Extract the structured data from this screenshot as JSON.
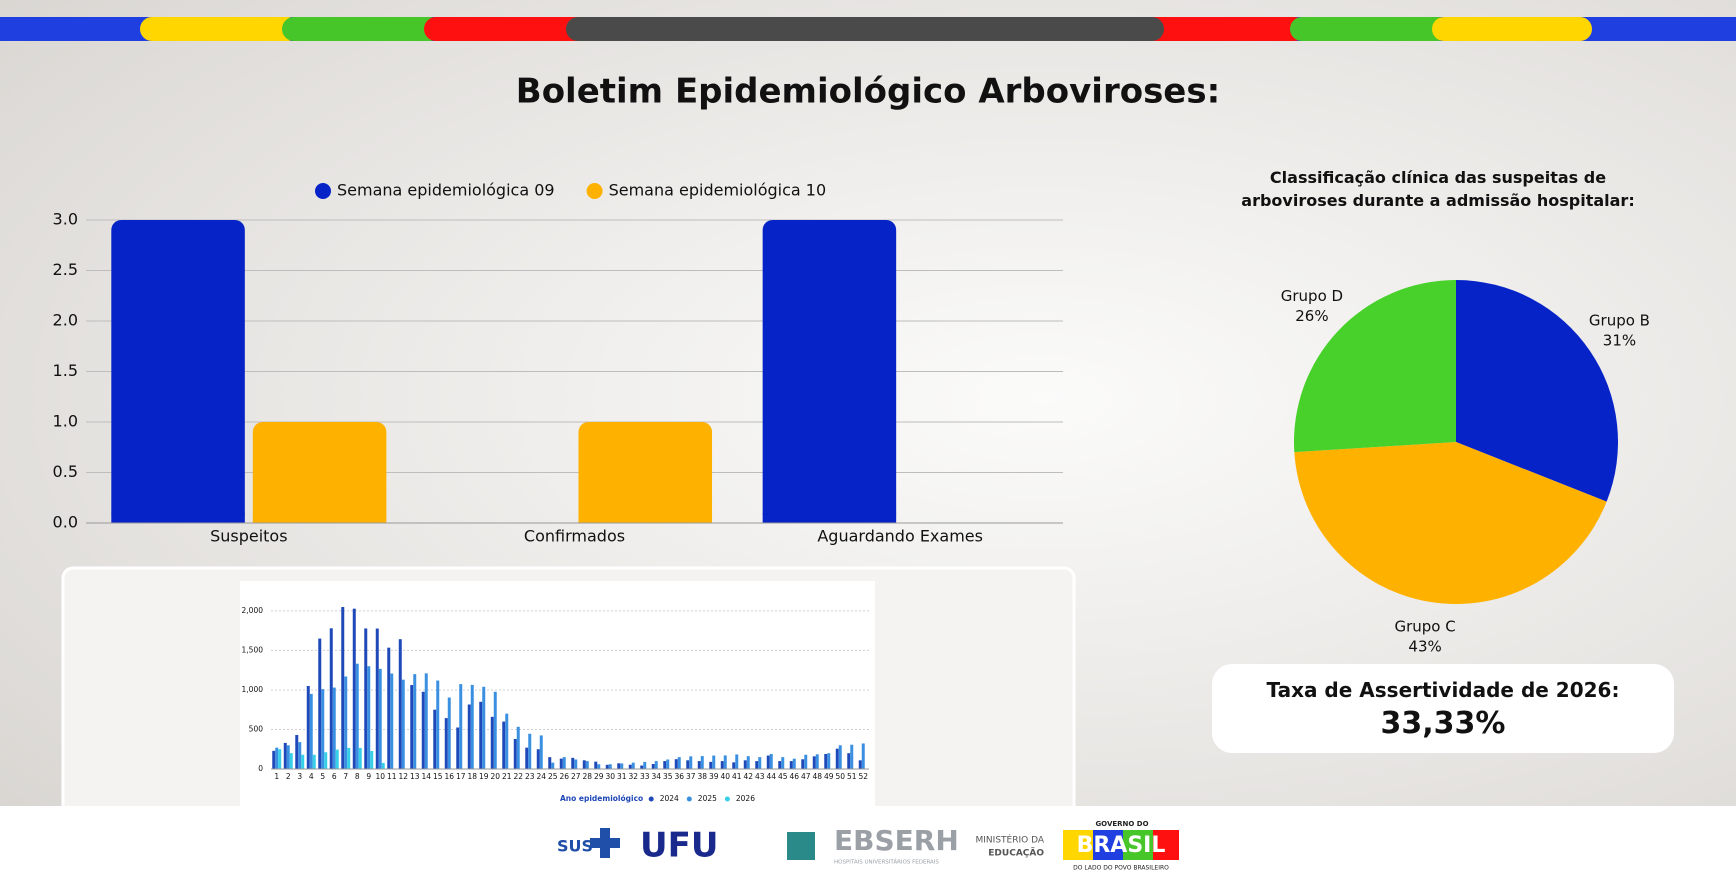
{
  "header": {
    "title": "Boletim Epidemiológico Arboviroses:"
  },
  "chart_data": [
    {
      "type": "bar",
      "categories": [
        "Suspeitos",
        "Confirmados",
        "Aguardando Exames"
      ],
      "series": [
        {
          "name": "Semana epidemiológica 09",
          "color": "#0623c8",
          "values": [
            3,
            0,
            3
          ]
        },
        {
          "name": "Semana epidemiológica 10",
          "color": "#ffb100",
          "values": [
            1,
            1,
            0
          ]
        }
      ],
      "ylim": [
        0,
        3
      ],
      "yticks": [
        {
          "value": 0,
          "label": "0.0"
        },
        0.5,
        {
          "value": 1,
          "label": "1.0"
        },
        1.5,
        {
          "value": 2,
          "label": "2.0"
        },
        2.5,
        {
          "value": 3,
          "label": "3.0"
        }
      ],
      "grid": true,
      "legend": "top"
    },
    {
      "type": "pie",
      "title": "Classificação clínica das suspeitas de arboviroses durante a admissão hospitalar:",
      "categories": [
        "Grupo B",
        "Grupo C",
        "Grupo D"
      ],
      "values": [
        31,
        43,
        26
      ],
      "value_labels": [
        "31%",
        "43%",
        "26%"
      ],
      "colors": [
        "#0623c8",
        "#ffb100",
        "#47d12a"
      ]
    },
    {
      "type": "bar",
      "categories": [
        "1",
        "2",
        "3",
        "4",
        "5",
        "6",
        "7",
        "8",
        "9",
        "10",
        "11",
        "12",
        "13",
        "14",
        "15",
        "16",
        "17",
        "18",
        "19",
        "20",
        "21",
        "22",
        "23",
        "24",
        "25",
        "26",
        "27",
        "28",
        "29",
        "30",
        "31",
        "32",
        "33",
        "34",
        "35",
        "36",
        "37",
        "38",
        "39",
        "40",
        "41",
        "42",
        "43",
        "44",
        "45",
        "46",
        "47",
        "48",
        "49",
        "50",
        "51",
        "52"
      ],
      "series": [
        {
          "name": "2024",
          "color": "#1f48b8",
          "values": [
            230,
            330,
            430,
            1050,
            1650,
            1780,
            2049,
            2028,
            1778,
            1777,
            1535,
            1642,
            1062,
            977,
            750,
            644,
            525,
            816,
            850,
            660,
            600,
            380,
            270,
            250,
            150,
            131,
            141,
            110,
            93,
            53,
            72,
            54,
            44,
            63,
            100,
            124,
            110,
            100,
            90,
            100,
            84,
            110,
            100,
            170,
            100,
            100,
            123,
            160,
            190,
            257,
            200,
            110
          ]
        },
        {
          "name": "2025",
          "color": "#3a8fe0",
          "values": [
            270,
            300,
            340,
            950,
            1010,
            1030,
            1170,
            1332,
            1300,
            1267,
            1208,
            1130,
            1200,
            1210,
            1119,
            904,
            1074,
            1064,
            1040,
            977,
            700,
            534,
            446,
            425,
            80,
            150,
            120,
            100,
            60,
            60,
            70,
            80,
            90,
            100,
            120,
            150,
            160,
            163,
            170,
            172,
            184,
            162,
            150,
            190,
            150,
            130,
            180,
            186,
            200,
            300,
            307,
            323
          ]
        },
        {
          "name": "2026",
          "color": "#35d0e8",
          "values": [
            250,
            200,
            180,
            180,
            212,
            245,
            267,
            267,
            228,
            77,
            null,
            null,
            null,
            null,
            null,
            null,
            null,
            null,
            null,
            null,
            null,
            null,
            null,
            null,
            null,
            null,
            null,
            null,
            null,
            null,
            null,
            null,
            null,
            null,
            null,
            null,
            null,
            null,
            null,
            null,
            null,
            null,
            null,
            null,
            null,
            null,
            null,
            null,
            null,
            null,
            null,
            null
          ]
        }
      ],
      "ylim": [
        0,
        2100
      ],
      "yticks": [
        0,
        500,
        {
          "value": 1000,
          "label": "1,000"
        },
        {
          "value": 1500,
          "label": "1,500"
        },
        {
          "value": 2000,
          "label": "2,000"
        }
      ],
      "grid": true,
      "legend": "bottom",
      "legend_title": "Ano epidemiológico"
    }
  ],
  "kpi": {
    "label": "Taxa de Assertividade de 2026:",
    "value": "33,33%"
  },
  "footer": {
    "logos": [
      "SUS",
      "UFU",
      "EBSERH",
      "HOSPITAIS UNIVERSITÁRIOS FEDERAIS",
      "MINISTÉRIO DA",
      "EDUCAÇÃO",
      "GOVERNO DO",
      "BRASIL",
      "DO LADO DO POVO BRASILEIRO"
    ]
  }
}
